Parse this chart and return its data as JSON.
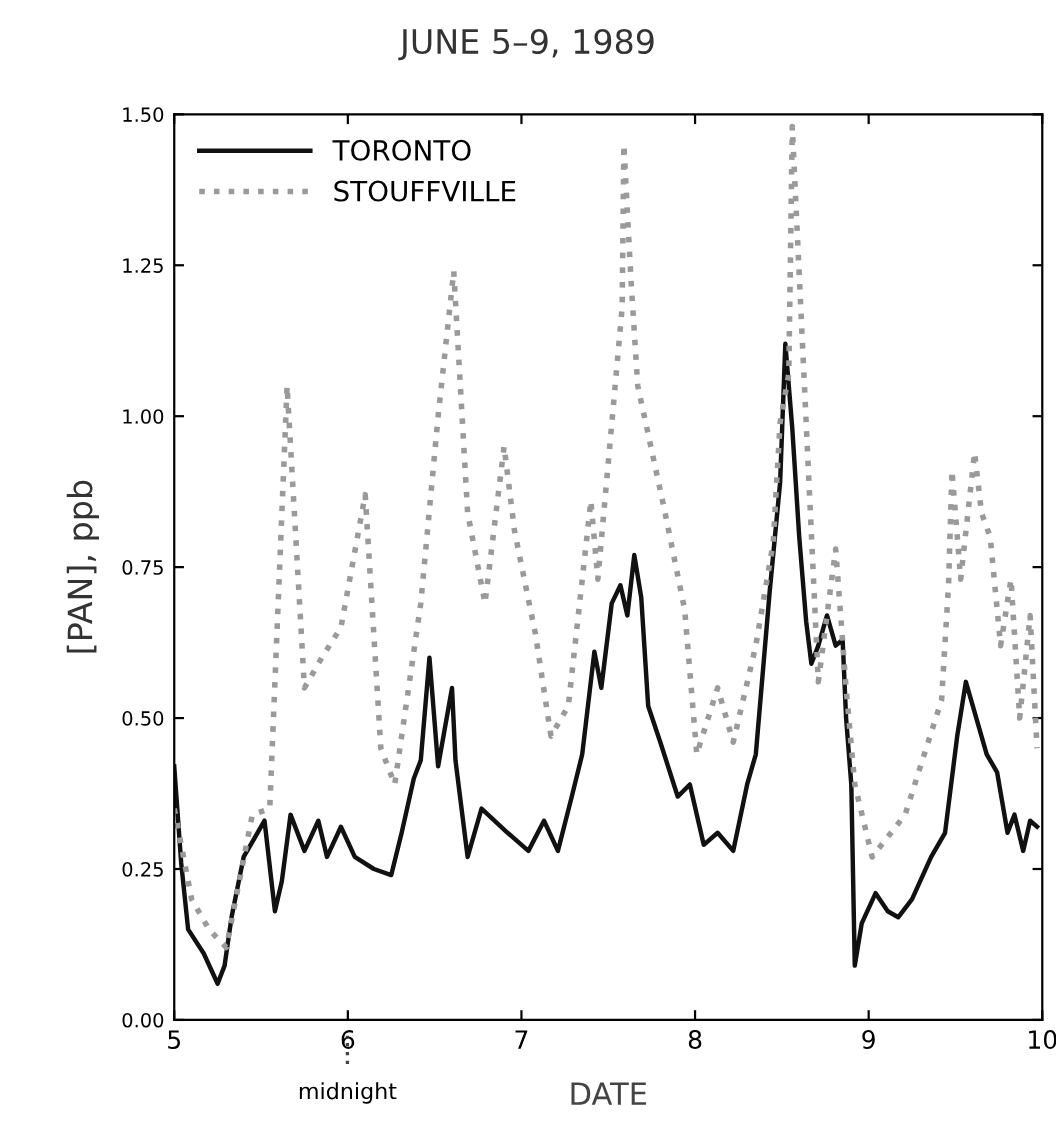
{
  "chart_data": {
    "type": "line",
    "title": "JUNE 5–9, 1989",
    "xlabel": "DATE",
    "ylabel": "[PAN], ppb",
    "xlim": [
      5,
      10
    ],
    "xticks": [
      5,
      6,
      7,
      8,
      9,
      10
    ],
    "ylim": [
      0,
      1.5
    ],
    "yticks": [
      {
        "value": 0,
        "label": "0.00"
      },
      {
        "value": 0.25,
        "label": "0.25"
      },
      {
        "value": 0.5,
        "label": "0.50"
      },
      {
        "value": 0.75,
        "label": "0.75"
      },
      {
        "value": 1.0,
        "label": "1.00"
      },
      {
        "value": 1.25,
        "label": "1.25"
      },
      {
        "value": 1.5,
        "label": "1.50"
      }
    ],
    "grid": false,
    "legend": "top left",
    "annotations": [
      "midnight"
    ],
    "series": [
      {
        "name": "TORONTO",
        "color": "#111111",
        "line_style": "solid",
        "x": [
          5.0,
          5.04,
          5.08,
          5.17,
          5.25,
          5.29,
          5.33,
          5.4,
          5.46,
          5.52,
          5.54,
          5.58,
          5.62,
          5.67,
          5.75,
          5.83,
          5.88,
          5.96,
          6.04,
          6.15,
          6.25,
          6.31,
          6.38,
          6.42,
          6.47,
          6.52,
          6.6,
          6.62,
          6.69,
          6.77,
          6.92,
          7.04,
          7.13,
          7.21,
          7.29,
          7.35,
          7.42,
          7.46,
          7.52,
          7.57,
          7.61,
          7.65,
          7.69,
          7.73,
          7.8,
          7.9,
          7.97,
          8.05,
          8.13,
          8.22,
          8.3,
          8.35,
          8.43,
          8.49,
          8.52,
          8.56,
          8.6,
          8.64,
          8.67,
          8.71,
          8.76,
          8.81,
          8.85,
          8.87,
          8.9,
          8.92,
          8.96,
          9.04,
          9.11,
          9.17,
          9.25,
          9.36,
          9.44,
          9.51,
          9.56,
          9.63,
          9.68,
          9.74,
          9.8,
          9.84,
          9.89,
          9.93,
          9.97
        ],
        "values": [
          0.42,
          0.26,
          0.15,
          0.11,
          0.06,
          0.09,
          0.17,
          0.27,
          0.3,
          0.33,
          0.28,
          0.18,
          0.23,
          0.34,
          0.28,
          0.33,
          0.27,
          0.32,
          0.27,
          0.25,
          0.24,
          0.31,
          0.4,
          0.43,
          0.6,
          0.42,
          0.55,
          0.43,
          0.27,
          0.35,
          0.31,
          0.28,
          0.33,
          0.28,
          0.37,
          0.44,
          0.61,
          0.55,
          0.69,
          0.72,
          0.67,
          0.77,
          0.7,
          0.52,
          0.46,
          0.37,
          0.39,
          0.29,
          0.31,
          0.28,
          0.39,
          0.44,
          0.71,
          0.89,
          1.12,
          0.98,
          0.8,
          0.66,
          0.59,
          0.62,
          0.67,
          0.62,
          0.63,
          0.5,
          0.39,
          0.09,
          0.16,
          0.21,
          0.18,
          0.17,
          0.2,
          0.27,
          0.31,
          0.47,
          0.56,
          0.49,
          0.44,
          0.41,
          0.31,
          0.34,
          0.28,
          0.33,
          0.32
        ]
      },
      {
        "name": "STOUFFVILLE",
        "color": "#9a9a9a",
        "line_style": "dotted",
        "x": [
          5.0,
          5.1,
          5.2,
          5.3,
          5.45,
          5.55,
          5.65,
          5.75,
          5.85,
          5.96,
          6.1,
          6.19,
          6.27,
          6.42,
          6.52,
          6.61,
          6.69,
          6.79,
          6.9,
          6.96,
          7.08,
          7.17,
          7.27,
          7.4,
          7.44,
          7.58,
          7.59,
          7.63,
          7.67,
          7.82,
          7.94,
          8.01,
          8.13,
          8.22,
          8.35,
          8.45,
          8.49,
          8.54,
          8.56,
          8.71,
          8.81,
          8.87,
          8.92,
          9.02,
          9.21,
          9.42,
          9.46,
          9.48,
          9.53,
          9.61,
          9.65,
          9.7,
          9.76,
          9.82,
          9.87,
          9.93,
          9.97
        ],
        "values": [
          0.35,
          0.2,
          0.15,
          0.12,
          0.34,
          0.35,
          1.05,
          0.55,
          0.6,
          0.65,
          0.87,
          0.45,
          0.39,
          0.69,
          1.0,
          1.24,
          0.84,
          0.69,
          0.95,
          0.81,
          0.64,
          0.47,
          0.52,
          0.86,
          0.73,
          1.18,
          1.45,
          1.23,
          1.05,
          0.85,
          0.68,
          0.44,
          0.55,
          0.46,
          0.62,
          0.79,
          0.99,
          1.07,
          1.48,
          0.56,
          0.78,
          0.55,
          0.39,
          0.27,
          0.34,
          0.53,
          0.72,
          0.91,
          0.73,
          0.94,
          0.84,
          0.8,
          0.62,
          0.73,
          0.5,
          0.67,
          0.45
        ]
      }
    ]
  }
}
